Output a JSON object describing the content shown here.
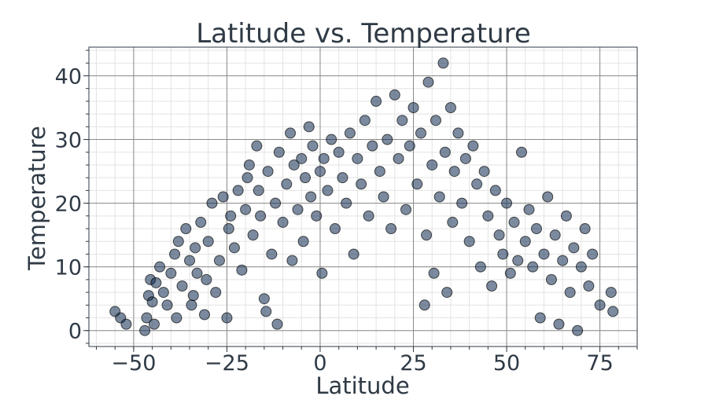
{
  "chart_data": {
    "type": "scatter",
    "title": "Latitude vs. Temperature",
    "xlabel": "Latitude",
    "ylabel": "Temperature",
    "xlim": [
      -62,
      85
    ],
    "ylim": [
      -2.5,
      44.5
    ],
    "x_ticks": [
      -50,
      -25,
      0,
      25,
      50,
      75
    ],
    "y_ticks": [
      0,
      10,
      20,
      30,
      40
    ],
    "x_minor_step": 5,
    "y_minor_step": 2,
    "grid": true,
    "marker_color": "#0f2a4f",
    "marker_edge_color": "#0a0a0a",
    "marker_opacity": 0.55,
    "series": [
      {
        "points": [
          [
            -55,
            3
          ],
          [
            -53.5,
            2
          ],
          [
            -52,
            1
          ],
          [
            -47,
            0
          ],
          [
            -46.5,
            2
          ],
          [
            -46,
            5.5
          ],
          [
            -45.5,
            8
          ],
          [
            -45,
            4.5
          ],
          [
            -44.5,
            1
          ],
          [
            -44,
            7.5
          ],
          [
            -43,
            10
          ],
          [
            -42,
            6
          ],
          [
            -41,
            4
          ],
          [
            -40,
            9
          ],
          [
            -39,
            12
          ],
          [
            -38.5,
            2
          ],
          [
            -38,
            14
          ],
          [
            -37,
            7
          ],
          [
            -36,
            16
          ],
          [
            -35,
            11
          ],
          [
            -34.5,
            4
          ],
          [
            -34,
            5.5
          ],
          [
            -33.5,
            13
          ],
          [
            -33,
            9
          ],
          [
            -32,
            17
          ],
          [
            -31,
            2.5
          ],
          [
            -30.5,
            8
          ],
          [
            -30,
            14
          ],
          [
            -29,
            20
          ],
          [
            -28,
            6
          ],
          [
            -27,
            11
          ],
          [
            -26,
            21
          ],
          [
            -25,
            2
          ],
          [
            -24.5,
            16
          ],
          [
            -24,
            18
          ],
          [
            -23,
            13
          ],
          [
            -22,
            22
          ],
          [
            -21,
            9.5
          ],
          [
            -20,
            19
          ],
          [
            -19.5,
            24
          ],
          [
            -19,
            26
          ],
          [
            -18,
            15
          ],
          [
            -17,
            29
          ],
          [
            -16.5,
            22
          ],
          [
            -16,
            18
          ],
          [
            -15,
            5
          ],
          [
            -14.5,
            3
          ],
          [
            -14,
            25
          ],
          [
            -13,
            12
          ],
          [
            -12,
            20
          ],
          [
            -11.5,
            1
          ],
          [
            -11,
            28
          ],
          [
            -10,
            17
          ],
          [
            -9,
            23
          ],
          [
            -8,
            31
          ],
          [
            -7.5,
            11
          ],
          [
            -7,
            26
          ],
          [
            -6,
            19
          ],
          [
            -5,
            27
          ],
          [
            -4.5,
            14
          ],
          [
            -4,
            24
          ],
          [
            -3,
            32
          ],
          [
            -2.5,
            21
          ],
          [
            -2,
            29
          ],
          [
            -1,
            18
          ],
          [
            0,
            25
          ],
          [
            0.5,
            9
          ],
          [
            1,
            27
          ],
          [
            2,
            22
          ],
          [
            3,
            30
          ],
          [
            4,
            16
          ],
          [
            5,
            28
          ],
          [
            6,
            24
          ],
          [
            7,
            20
          ],
          [
            8,
            31
          ],
          [
            9,
            12
          ],
          [
            10,
            27
          ],
          [
            11,
            23
          ],
          [
            12,
            33
          ],
          [
            13,
            18
          ],
          [
            14,
            29
          ],
          [
            15,
            36
          ],
          [
            16,
            25
          ],
          [
            17,
            21
          ],
          [
            18,
            30
          ],
          [
            19,
            16
          ],
          [
            20,
            37
          ],
          [
            21,
            27
          ],
          [
            22,
            33
          ],
          [
            23,
            19
          ],
          [
            24,
            29
          ],
          [
            25,
            35
          ],
          [
            26,
            23
          ],
          [
            27,
            31
          ],
          [
            28,
            4
          ],
          [
            28.5,
            15
          ],
          [
            29,
            39
          ],
          [
            30,
            26
          ],
          [
            30.5,
            9
          ],
          [
            31,
            33
          ],
          [
            32,
            21
          ],
          [
            33,
            42
          ],
          [
            33.5,
            28
          ],
          [
            34,
            6
          ],
          [
            35,
            35
          ],
          [
            35.5,
            17
          ],
          [
            36,
            25
          ],
          [
            37,
            31
          ],
          [
            38,
            20
          ],
          [
            39,
            27
          ],
          [
            40,
            14
          ],
          [
            41,
            29
          ],
          [
            42,
            23
          ],
          [
            43,
            10
          ],
          [
            44,
            25
          ],
          [
            45,
            18
          ],
          [
            46,
            7
          ],
          [
            47,
            22
          ],
          [
            48,
            15
          ],
          [
            49,
            12
          ],
          [
            50,
            20
          ],
          [
            51,
            9
          ],
          [
            52,
            17
          ],
          [
            53,
            11
          ],
          [
            54,
            28
          ],
          [
            55,
            14
          ],
          [
            56,
            19
          ],
          [
            57,
            10
          ],
          [
            58,
            16
          ],
          [
            59,
            2
          ],
          [
            60,
            12
          ],
          [
            61,
            21
          ],
          [
            62,
            8
          ],
          [
            63,
            15
          ],
          [
            64,
            1
          ],
          [
            65,
            11
          ],
          [
            66,
            18
          ],
          [
            67,
            6
          ],
          [
            68,
            13
          ],
          [
            69,
            0
          ],
          [
            70,
            10
          ],
          [
            71,
            16
          ],
          [
            72,
            7
          ],
          [
            73,
            12
          ],
          [
            75,
            4
          ],
          [
            78,
            6
          ],
          [
            78.5,
            3
          ]
        ]
      }
    ]
  }
}
